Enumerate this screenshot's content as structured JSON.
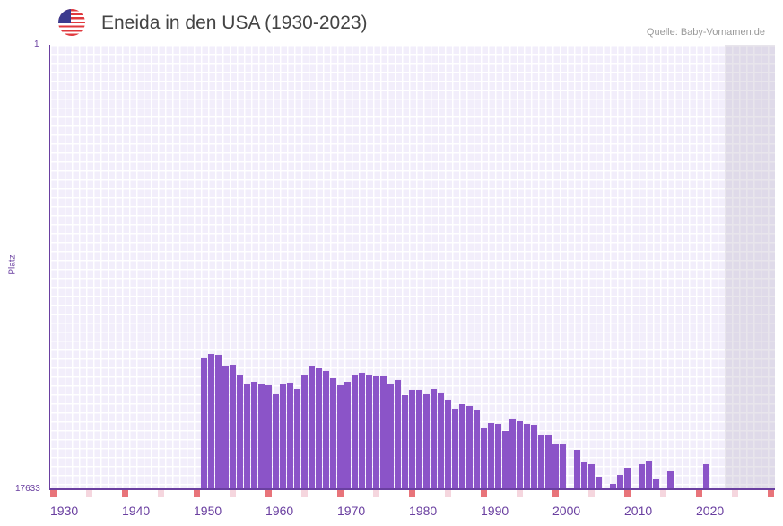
{
  "header": {
    "title": "Eneida in den USA (1930-2023)",
    "source": "Quelle: Baby-Vornamen.de",
    "flag_icon": "us-flag-icon"
  },
  "chart_data": {
    "type": "bar",
    "title": "Eneida in den USA (1930-2023)",
    "ylabel": "Platz",
    "ytick_top": "1",
    "ytick_bottom": "17633",
    "ylim": [
      17633,
      1
    ],
    "xlim": [
      1930,
      2031
    ],
    "xticks": [
      "1930",
      "1940",
      "1950",
      "1960",
      "1970",
      "1980",
      "1990",
      "2000",
      "2010",
      "2020"
    ],
    "bar_color": "#8b54c8",
    "years": [
      1951,
      1952,
      1953,
      1954,
      1955,
      1956,
      1957,
      1958,
      1959,
      1960,
      1961,
      1962,
      1963,
      1964,
      1965,
      1966,
      1967,
      1968,
      1969,
      1970,
      1971,
      1972,
      1973,
      1974,
      1975,
      1976,
      1977,
      1978,
      1979,
      1980,
      1981,
      1982,
      1983,
      1984,
      1985,
      1986,
      1987,
      1988,
      1989,
      1990,
      1991,
      1992,
      1993,
      1994,
      1995,
      1996,
      1997,
      1998,
      1999,
      2000,
      2001,
      2003,
      2004,
      2005,
      2006,
      2008,
      2009,
      2010,
      2012,
      2013,
      2014,
      2016,
      2021
    ],
    "ranks": [
      12431,
      12290,
      12325,
      12752,
      12717,
      13144,
      13465,
      13394,
      13501,
      13536,
      13892,
      13501,
      13429,
      13679,
      13144,
      12788,
      12859,
      12966,
      13251,
      13536,
      13394,
      13144,
      13037,
      13144,
      13180,
      13180,
      13465,
      13322,
      13928,
      13714,
      13714,
      13892,
      13679,
      13856,
      14106,
      14462,
      14284,
      14355,
      14533,
      15246,
      15032,
      15068,
      15353,
      14889,
      14961,
      15068,
      15104,
      15531,
      15531,
      15888,
      15888,
      16101,
      16600,
      16671,
      17170,
      17455,
      17099,
      16814,
      16671,
      16564,
      17242,
      16956,
      16671
    ]
  }
}
